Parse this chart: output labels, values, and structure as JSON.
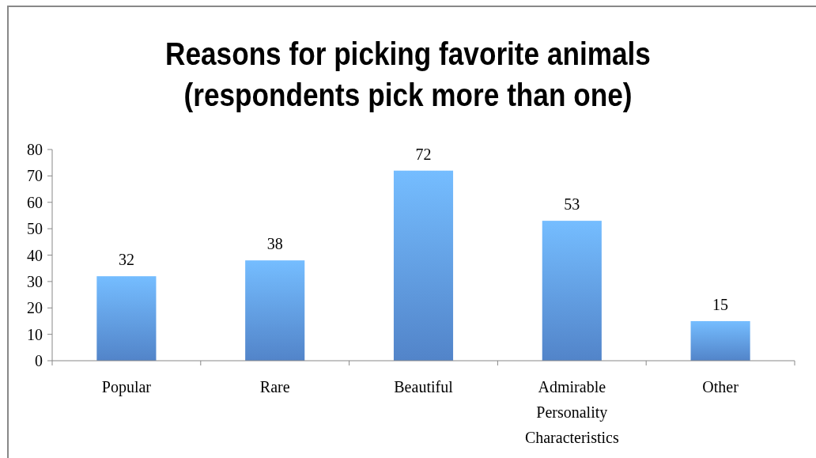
{
  "chart_data": {
    "type": "bar",
    "title": "Reasons for picking favorite animals (respondents pick more than one)",
    "categories": [
      "Popular",
      "Rare",
      "Beautiful",
      "Admirable Personality Characteristics",
      "Other"
    ],
    "values": [
      32,
      38,
      72,
      53,
      15
    ],
    "color": "#5b93e0",
    "ylim": [
      0,
      80
    ],
    "yticks": [
      0,
      10,
      20,
      30,
      40,
      50,
      60,
      70,
      80
    ],
    "data_labels": true,
    "grid": false
  }
}
